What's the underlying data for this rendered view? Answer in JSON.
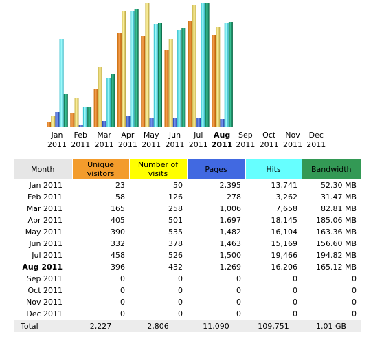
{
  "colors": {
    "unique_visitors": "#f39c2c",
    "number_of_visits": "#ffff00",
    "pages": "#4169e1",
    "hits": "#66ffff",
    "bandwidth": "#339955",
    "header_gray": "#e6e6e6"
  },
  "chart_data": {
    "type": "bar",
    "categories": [
      "Jan 2011",
      "Feb 2011",
      "Mar 2011",
      "Apr 2011",
      "May 2011",
      "Jun 2011",
      "Jul 2011",
      "Aug 2011",
      "Sep 2011",
      "Oct 2011",
      "Nov 2011",
      "Dec 2011"
    ],
    "month_labels": [
      {
        "month": "Jan",
        "year": "2011"
      },
      {
        "month": "Feb",
        "year": "2011"
      },
      {
        "month": "Mar",
        "year": "2011"
      },
      {
        "month": "Apr",
        "year": "2011"
      },
      {
        "month": "May",
        "year": "2011"
      },
      {
        "month": "Jun",
        "year": "2011"
      },
      {
        "month": "Jul",
        "year": "2011"
      },
      {
        "month": "Aug",
        "year": "2011"
      },
      {
        "month": "Sep",
        "year": "2011"
      },
      {
        "month": "Oct",
        "year": "2011"
      },
      {
        "month": "Nov",
        "year": "2011"
      },
      {
        "month": "Dec",
        "year": "2011"
      }
    ],
    "current_index": 7,
    "series": [
      {
        "name": "Unique visitors",
        "values": [
          23,
          58,
          165,
          405,
          390,
          332,
          458,
          396,
          0,
          0,
          0,
          0
        ]
      },
      {
        "name": "Number of visits",
        "values": [
          50,
          126,
          258,
          501,
          535,
          378,
          526,
          432,
          0,
          0,
          0,
          0
        ]
      },
      {
        "name": "Pages",
        "values": [
          2395,
          278,
          1006,
          1697,
          1482,
          1463,
          1500,
          1269,
          0,
          0,
          0,
          0
        ]
      },
      {
        "name": "Hits",
        "values": [
          13741,
          3262,
          7658,
          18145,
          16104,
          15169,
          19466,
          16206,
          0,
          0,
          0,
          0
        ]
      },
      {
        "name": "Bandwidth",
        "values_mb": [
          52.3,
          31.47,
          82.81,
          185.06,
          163.36,
          156.6,
          194.82,
          165.12,
          0,
          0,
          0,
          0
        ]
      }
    ]
  },
  "table": {
    "headers": {
      "month": "Month",
      "unique": "Unique visitors",
      "visits": "Number of visits",
      "pages": "Pages",
      "hits": "Hits",
      "bandwidth": "Bandwidth"
    },
    "rows": [
      {
        "month": "Jan 2011",
        "unique": "23",
        "visits": "50",
        "pages": "2,395",
        "hits": "13,741",
        "bandwidth": "52.30 MB"
      },
      {
        "month": "Feb 2011",
        "unique": "58",
        "visits": "126",
        "pages": "278",
        "hits": "3,262",
        "bandwidth": "31.47 MB"
      },
      {
        "month": "Mar 2011",
        "unique": "165",
        "visits": "258",
        "pages": "1,006",
        "hits": "7,658",
        "bandwidth": "82.81 MB"
      },
      {
        "month": "Apr 2011",
        "unique": "405",
        "visits": "501",
        "pages": "1,697",
        "hits": "18,145",
        "bandwidth": "185.06 MB"
      },
      {
        "month": "May 2011",
        "unique": "390",
        "visits": "535",
        "pages": "1,482",
        "hits": "16,104",
        "bandwidth": "163.36 MB"
      },
      {
        "month": "Jun 2011",
        "unique": "332",
        "visits": "378",
        "pages": "1,463",
        "hits": "15,169",
        "bandwidth": "156.60 MB"
      },
      {
        "month": "Jul 2011",
        "unique": "458",
        "visits": "526",
        "pages": "1,500",
        "hits": "19,466",
        "bandwidth": "194.82 MB"
      },
      {
        "month": "Aug 2011",
        "unique": "396",
        "visits": "432",
        "pages": "1,269",
        "hits": "16,206",
        "bandwidth": "165.12 MB"
      },
      {
        "month": "Sep 2011",
        "unique": "0",
        "visits": "0",
        "pages": "0",
        "hits": "0",
        "bandwidth": "0"
      },
      {
        "month": "Oct 2011",
        "unique": "0",
        "visits": "0",
        "pages": "0",
        "hits": "0",
        "bandwidth": "0"
      },
      {
        "month": "Nov 2011",
        "unique": "0",
        "visits": "0",
        "pages": "0",
        "hits": "0",
        "bandwidth": "0"
      },
      {
        "month": "Dec 2011",
        "unique": "0",
        "visits": "0",
        "pages": "0",
        "hits": "0",
        "bandwidth": "0"
      }
    ],
    "total": {
      "month": "Total",
      "unique": "2,227",
      "visits": "2,806",
      "pages": "11,090",
      "hits": "109,751",
      "bandwidth": "1.01 GB"
    }
  }
}
